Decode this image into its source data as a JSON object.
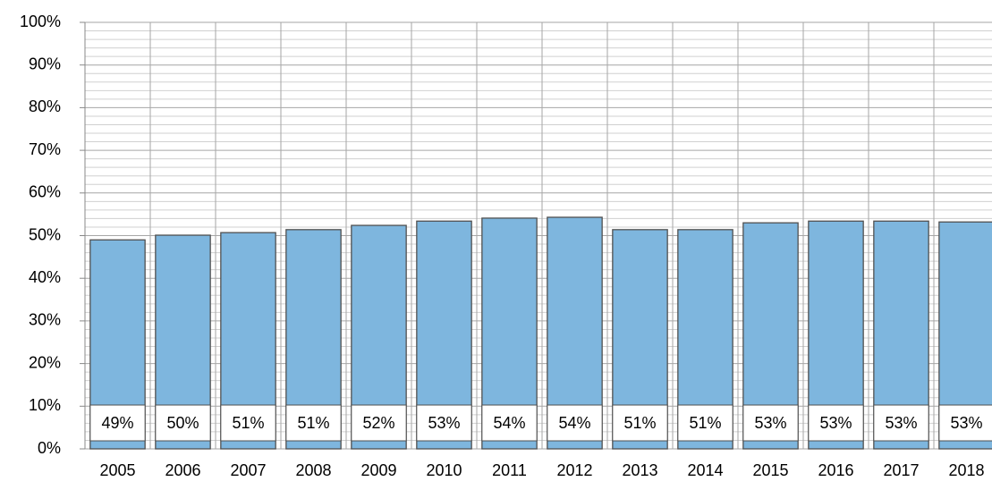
{
  "chart_data": {
    "type": "bar",
    "categories": [
      "2005",
      "2006",
      "2007",
      "2008",
      "2009",
      "2010",
      "2011",
      "2012",
      "2013",
      "2014",
      "2015",
      "2016",
      "2017",
      "2018"
    ],
    "values": [
      49.0,
      50.1,
      50.7,
      51.4,
      52.4,
      53.4,
      54.1,
      54.3,
      51.4,
      51.4,
      53.0,
      53.4,
      53.4,
      53.2
    ],
    "value_labels": [
      "49%",
      "50%",
      "51%",
      "51%",
      "52%",
      "53%",
      "54%",
      "54%",
      "51%",
      "51%",
      "53%",
      "53%",
      "53%",
      "53%"
    ],
    "color": "#7eb6de",
    "ylim": [
      0,
      100
    ],
    "yticks": [
      {
        "value": 0,
        "label": "0%"
      },
      {
        "value": 10,
        "label": "10%"
      },
      {
        "value": 20,
        "label": "20%"
      },
      {
        "value": 30,
        "label": "30%"
      },
      {
        "value": 40,
        "label": "40%"
      },
      {
        "value": 50,
        "label": "50%"
      },
      {
        "value": 60,
        "label": "60%"
      },
      {
        "value": 70,
        "label": "70%"
      },
      {
        "value": 80,
        "label": "80%"
      },
      {
        "value": 90,
        "label": "90%"
      },
      {
        "value": 100,
        "label": "100%"
      }
    ],
    "grid": true
  }
}
